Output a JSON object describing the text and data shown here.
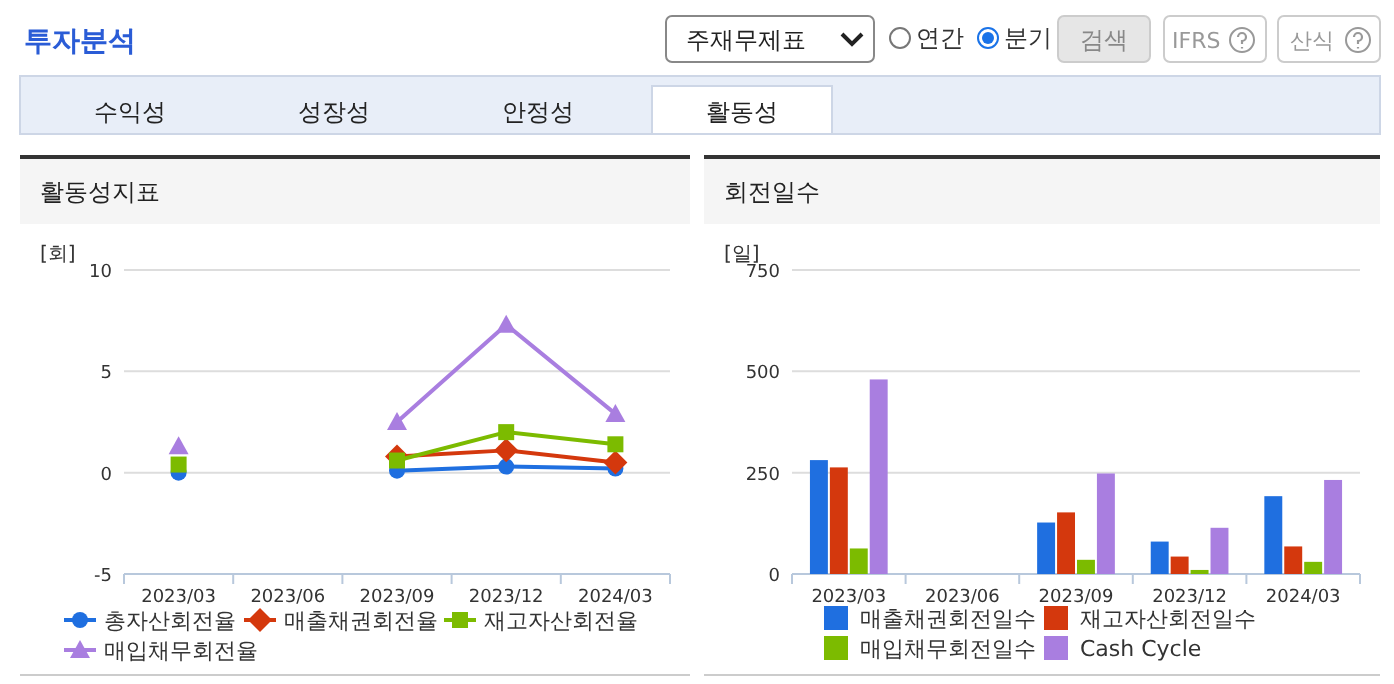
{
  "chart_data": [
    {
      "type": "other",
      "title": "투자분석",
      "annotations": [
        "주재무제표",
        "연간",
        "분기",
        "검색",
        "IFRS",
        "산식",
        "수익성",
        "성장성",
        "안정성",
        "활동성"
      ]
    },
    {
      "type": "line",
      "title": "활동성지표",
      "ylabel": "[회]",
      "categories": [
        "2023/03",
        "2023/06",
        "2023/09",
        "2023/12",
        "2024/03"
      ],
      "ylim": [
        -5,
        10
      ],
      "yticks": [
        -5,
        0,
        5,
        10
      ],
      "grid": "y",
      "legend": "bottom",
      "line_style": "solid",
      "series": [
        {
          "name": "총자산회전율",
          "color": "#1f6fe0",
          "marker": "circle",
          "values": [
            0.0,
            null,
            0.1,
            0.3,
            0.2
          ]
        },
        {
          "name": "매출채권회전율",
          "color": "#d4380d",
          "marker": "diamond",
          "values": [
            null,
            null,
            0.8,
            1.1,
            0.5
          ]
        },
        {
          "name": "재고자산회전율",
          "color": "#7cbb00",
          "marker": "square",
          "values": [
            0.4,
            null,
            0.6,
            2.0,
            1.4
          ]
        },
        {
          "name": "매입채무회전율",
          "color": "#a97ee0",
          "marker": "triangle",
          "values": [
            1.3,
            null,
            2.5,
            7.3,
            2.9
          ]
        }
      ]
    },
    {
      "type": "bar",
      "title": "회전일수",
      "ylabel": "[일]",
      "categories": [
        "2023/03",
        "2023/06",
        "2023/09",
        "2023/12",
        "2024/03"
      ],
      "ylim": [
        0,
        750
      ],
      "yticks": [
        0,
        250,
        500,
        750
      ],
      "grid": "y",
      "legend": "bottom",
      "series": [
        {
          "name": "매출채권회전일수",
          "color": "#1f6fe0",
          "values": [
            281,
            null,
            127,
            80,
            192
          ]
        },
        {
          "name": "재고자산회전일수",
          "color": "#d4380d",
          "values": [
            263,
            null,
            152,
            43,
            68
          ]
        },
        {
          "name": "매입채무회전일수",
          "color": "#7cbb00",
          "values": [
            63,
            null,
            35,
            10,
            30
          ]
        },
        {
          "name": "Cash Cycle",
          "color": "#a97ee0",
          "values": [
            480,
            null,
            248,
            114,
            232
          ]
        }
      ]
    }
  ]
}
